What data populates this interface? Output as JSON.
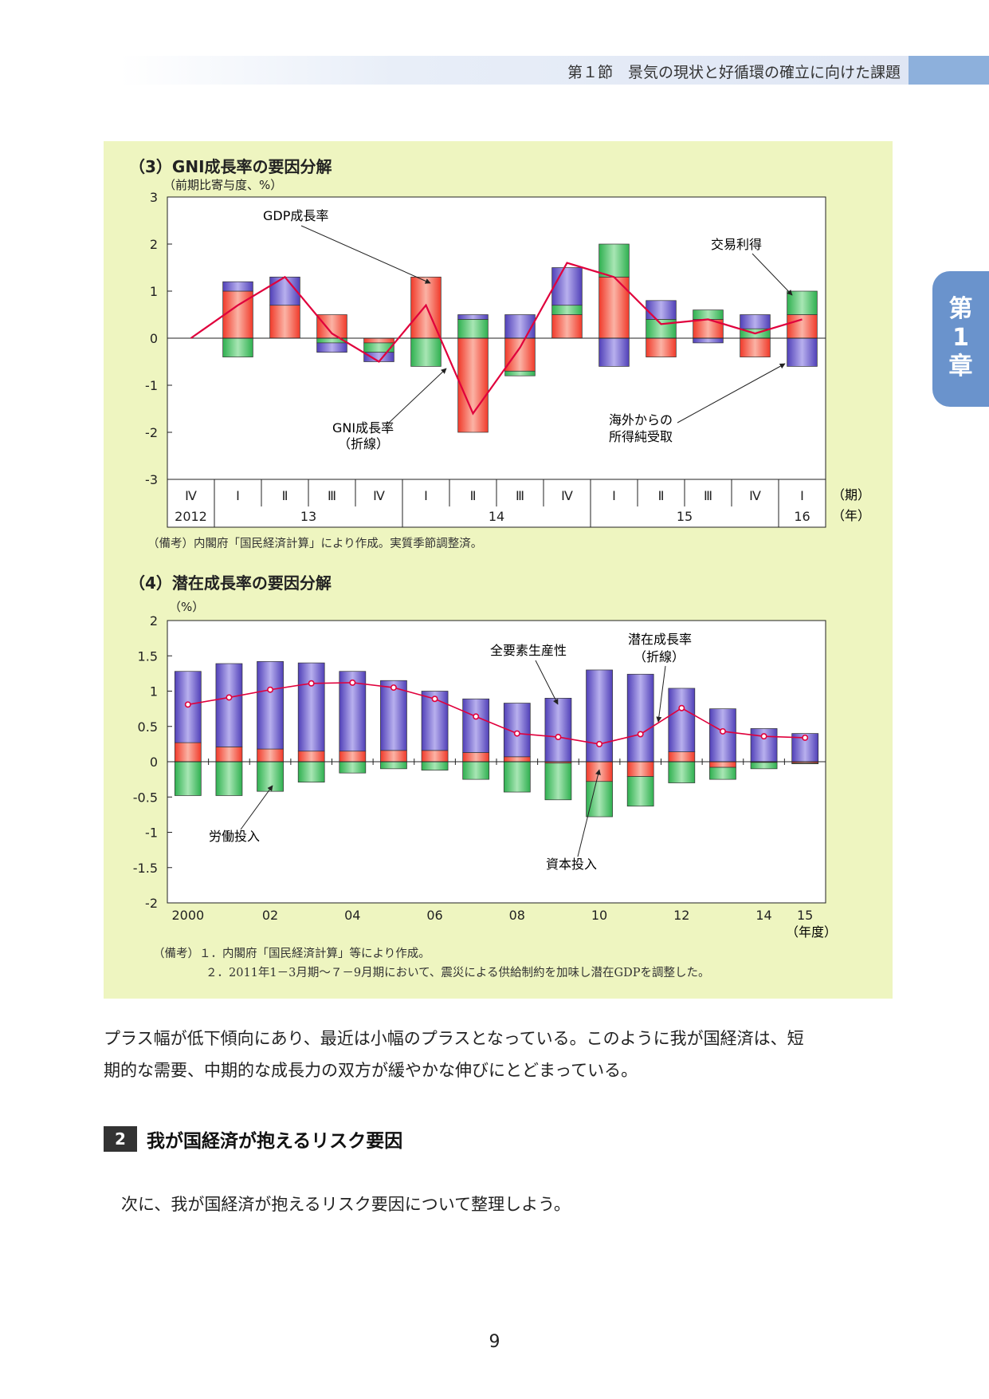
{
  "header": {
    "text": "第１節　景気の現状と好循環の確立に向けた課題"
  },
  "chapter_tab": {
    "lines": [
      "第",
      "1",
      "章"
    ]
  },
  "figure": {
    "chart3": {
      "title": "（3）GNI成長率の要因分解",
      "unit": "（前期比寄与度、%）",
      "period_unit": "（期）",
      "year_unit": "（年）",
      "note": "（備考）内閣府「国民経済計算」により作成。実質季節調整済。",
      "annotations": {
        "gdp": "GDP成長率",
        "trade": "交易利得",
        "gni1": "GNI成長率",
        "gni2": "（折線）",
        "income1": "海外からの",
        "income2": "所得純受取"
      }
    },
    "chart4": {
      "title": "（4）潜在成長率の要因分解",
      "unit": "（%）",
      "year_unit": "（年度）",
      "note1": "（備考）１．内閣府「国民経済計算」等により作成。",
      "note2": "２．2011年1－3月期～７－9月期において、震災による供給制約を加味し潜在GDPを調整した。",
      "annotations": {
        "tfp": "全要素生産性",
        "pot1": "潜在成長率",
        "pot2": "（折線）",
        "labor": "労働投入",
        "capital": "資本投入"
      }
    }
  },
  "colors": {
    "red": "#f4604e",
    "green": "#4dbd6a",
    "blue": "#6a5cc8",
    "line": "#e0003c",
    "bg": "#eef5c0"
  },
  "chart_data": [
    {
      "type": "bar",
      "stacked": true,
      "title": "（3）GNI成長率の要因分解",
      "ylabel": "（前期比寄与度、%）",
      "ylim": [
        -3,
        3
      ],
      "yticks": [
        "3",
        "2",
        "1",
        "0",
        "-1",
        "-2",
        "-3"
      ],
      "categories": [
        "Ⅳ",
        "Ⅰ",
        "Ⅱ",
        "Ⅲ",
        "Ⅳ",
        "Ⅰ",
        "Ⅱ",
        "Ⅲ",
        "Ⅳ",
        "Ⅰ",
        "Ⅱ",
        "Ⅲ",
        "Ⅳ",
        "Ⅰ"
      ],
      "years": [
        {
          "label": "2012",
          "first": 0,
          "last": 0
        },
        {
          "label": "13",
          "first": 1,
          "last": 4
        },
        {
          "label": "14",
          "first": 5,
          "last": 8
        },
        {
          "label": "15",
          "first": 9,
          "last": 12
        },
        {
          "label": "16",
          "first": 13,
          "last": 13
        }
      ],
      "series": [
        {
          "name": "GDP成長率",
          "color": "red",
          "values": [
            0,
            1.0,
            0.7,
            0.5,
            -0.1,
            1.3,
            -2.0,
            -0.7,
            0.5,
            1.3,
            -0.4,
            0.4,
            -0.4,
            0.5
          ]
        },
        {
          "name": "交易利得",
          "color": "green",
          "values": [
            0,
            -0.4,
            0,
            -0.1,
            -0.2,
            -0.6,
            0.4,
            -0.1,
            0.2,
            0.7,
            0.4,
            0.2,
            0.2,
            0.5
          ]
        },
        {
          "name": "海外からの所得純受取",
          "color": "blue",
          "values": [
            0,
            0.2,
            0.6,
            -0.2,
            -0.2,
            0,
            0.1,
            0.5,
            0.8,
            -0.6,
            0.4,
            -0.1,
            0.3,
            -0.6
          ]
        }
      ],
      "line": {
        "name": "GNI成長率",
        "values": [
          0,
          0.7,
          1.3,
          0.1,
          -0.5,
          0.7,
          -1.6,
          -0.2,
          1.6,
          1.3,
          0.3,
          0.4,
          0.1,
          0.4
        ]
      }
    },
    {
      "type": "bar",
      "stacked": true,
      "title": "（4）潜在成長率の要因分解",
      "ylabel": "（%）",
      "ylim": [
        -2,
        2
      ],
      "yticks": [
        "2",
        "1.5",
        "1",
        "0.5",
        "0",
        "-0.5",
        "-1",
        "-1.5",
        "-2"
      ],
      "categories": [
        "2000",
        "01",
        "02",
        "03",
        "04",
        "05",
        "06",
        "07",
        "08",
        "09",
        "10",
        "11",
        "12",
        "13",
        "14",
        "15"
      ],
      "xticklabels": [
        "2000",
        "",
        "02",
        "",
        "04",
        "",
        "06",
        "",
        "08",
        "",
        "10",
        "",
        "12",
        "",
        "14",
        "15"
      ],
      "series": [
        {
          "name": "資本投入",
          "color": "red",
          "values": [
            0.27,
            0.21,
            0.18,
            0.15,
            0.15,
            0.16,
            0.16,
            0.13,
            0.07,
            -0.02,
            -0.28,
            -0.21,
            0.14,
            -0.08,
            -0.01,
            -0.02
          ]
        },
        {
          "name": "労働投入",
          "color": "green",
          "values": [
            -0.48,
            -0.48,
            -0.42,
            -0.29,
            -0.16,
            -0.1,
            -0.12,
            -0.25,
            -0.43,
            -0.52,
            -0.5,
            -0.42,
            -0.3,
            -0.17,
            -0.09,
            -0.01
          ]
        },
        {
          "name": "全要素生産性",
          "color": "blue",
          "values": [
            1.01,
            1.18,
            1.24,
            1.25,
            1.13,
            0.99,
            0.84,
            0.76,
            0.76,
            0.9,
            1.3,
            1.24,
            0.9,
            0.75,
            0.47,
            0.4
          ]
        }
      ],
      "line": {
        "name": "潜在成長率",
        "values": [
          0.81,
          0.91,
          1.02,
          1.11,
          1.12,
          1.05,
          0.89,
          0.64,
          0.4,
          0.35,
          0.25,
          0.39,
          0.76,
          0.43,
          0.36,
          0.34
        ]
      }
    }
  ],
  "body": {
    "paragraph1_line1": "プラス幅が低下傾向にあり、最近は小幅のプラスとなっている。このように我が国経済は、短",
    "paragraph1_line2": "期的な需要、中期的な成長力の双方が緩やかな伸びにとどまっている。",
    "section_number": "2",
    "section_title": "我が国経済が抱えるリスク要因",
    "paragraph2": "次に、我が国経済が抱えるリスク要因について整理しよう。"
  },
  "page_number": "9"
}
